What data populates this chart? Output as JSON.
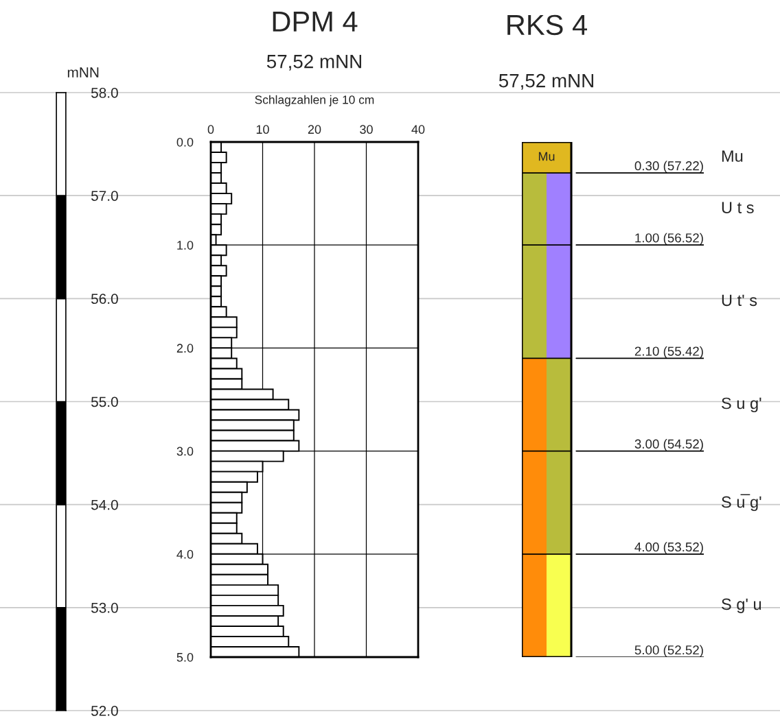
{
  "chart_data": [
    {
      "type": "bar",
      "categories": [
        null
      ],
      "tick_labels": "y",
      "series": [
        {
          "base": [
            52
          ],
          "values": [
            1
          ],
          "color": "#000000"
        },
        {
          "base": [
            53
          ],
          "values": [
            1
          ],
          "color": "#ffffff"
        },
        {
          "base": [
            54
          ],
          "values": [
            1
          ],
          "color": "#000000"
        },
        {
          "base": [
            55
          ],
          "values": [
            1
          ],
          "color": "#ffffff"
        },
        {
          "base": [
            56
          ],
          "values": [
            1
          ],
          "color": "#000000"
        },
        {
          "base": [
            57
          ],
          "values": [
            1
          ],
          "color": "#ffffff"
        }
      ],
      "ylabel": "mNN",
      "ylim": [
        52,
        58
      ],
      "yticks": [
        {
          "value": 52,
          "label": "52.0"
        },
        {
          "value": 53,
          "label": "53.0"
        },
        {
          "value": 54,
          "label": "54.0"
        },
        {
          "value": 55,
          "label": "55.0"
        },
        {
          "value": 56,
          "label": "56.0"
        },
        {
          "value": 57,
          "label": "57.0"
        },
        {
          "value": 58,
          "label": "58.0"
        }
      ],
      "grid": "y"
    },
    {
      "type": "histogram",
      "orientation": "horizontal",
      "title": "DPM 4",
      "subtitle": "57,52 mNN",
      "xlabel": "Schlagzahlen je 10 cm",
      "bins": [
        0.0,
        0.1,
        0.2,
        0.3,
        0.4,
        0.5,
        0.6,
        0.7,
        0.8,
        0.9,
        1.0,
        1.1,
        1.2,
        1.3,
        1.4,
        1.5,
        1.6,
        1.7,
        1.8,
        1.9,
        2.0,
        2.1,
        2.2,
        2.3,
        2.4,
        2.5,
        2.6,
        2.7,
        2.8,
        2.9,
        3.0,
        3.1,
        3.2,
        3.3,
        3.4,
        3.5,
        3.6,
        3.7,
        3.8,
        3.9,
        4.0,
        4.1,
        4.2,
        4.3,
        4.4,
        4.5,
        4.6,
        4.7,
        4.8,
        4.9,
        5.0
      ],
      "values": [
        2,
        3,
        2,
        2,
        3,
        4,
        3,
        2,
        2,
        1,
        3,
        2,
        3,
        2,
        2,
        2,
        3,
        5,
        5,
        4,
        4,
        5,
        6,
        6,
        12,
        15,
        17,
        16,
        16,
        17,
        14,
        10,
        9,
        7,
        6,
        6,
        5,
        5,
        6,
        9,
        10,
        11,
        11,
        13,
        13,
        14,
        13,
        14,
        15,
        17
      ],
      "color": "#ffffff",
      "xlim": [
        0,
        40
      ],
      "xticks": [
        0,
        10,
        20,
        30,
        40
      ],
      "ylim": [
        5,
        0
      ],
      "yticks": [
        {
          "value": 0,
          "label": "0.0"
        },
        {
          "value": 1,
          "label": "1.0"
        },
        {
          "value": 2,
          "label": "2.0"
        },
        {
          "value": 3,
          "label": "3.0"
        },
        {
          "value": 4,
          "label": "4.0"
        },
        {
          "value": 5,
          "label": "5.0"
        }
      ],
      "grid": true
    },
    {
      "type": "bar",
      "stacked": true,
      "title": "RKS 4",
      "subtitle": "57,52 mNN",
      "categories": [
        null,
        null
      ],
      "ylim": [
        5,
        0
      ],
      "tick_labels": false,
      "series": [
        {
          "name": "Mu",
          "values": [
            0.3,
            0.3
          ],
          "colors": [
            "#e0b820",
            "#e0b820"
          ]
        },
        {
          "values": [
            0.7,
            0.7
          ],
          "colors": [
            "#b8bc3c",
            "#a080ff"
          ]
        },
        {
          "values": [
            1.1,
            1.1
          ],
          "colors": [
            "#b8bc3c",
            "#a080ff"
          ]
        },
        {
          "values": [
            0.9,
            0.9
          ],
          "colors": [
            "#ff8c0a",
            "#b8bc3c"
          ]
        },
        {
          "values": [
            1.0,
            1.0
          ],
          "colors": [
            "#ff8c0a",
            "#b8bc3c"
          ]
        },
        {
          "values": [
            1.0,
            1.0
          ],
          "colors": [
            "#ff8c0a",
            "#f8ff50"
          ]
        }
      ],
      "ref_lines": [
        {
          "axis": "y",
          "value": 0.3,
          "label": "0.30 (57.22)"
        },
        {
          "axis": "y",
          "value": 1.0,
          "label": "1.00 (56.52)"
        },
        {
          "axis": "y",
          "value": 2.1,
          "label": "2.10 (55.42)"
        },
        {
          "axis": "y",
          "value": 3.0,
          "label": "3.00 (54.52)"
        },
        {
          "axis": "y",
          "value": 4.0,
          "label": "4.00 (53.52)"
        },
        {
          "axis": "y",
          "value": 5.0,
          "label": "5.00 (52.52)"
        }
      ],
      "annotations": [
        "Mu",
        "U t s",
        "U t' s",
        "S u g'",
        "S u̅ g'",
        "S g' u"
      ]
    }
  ]
}
